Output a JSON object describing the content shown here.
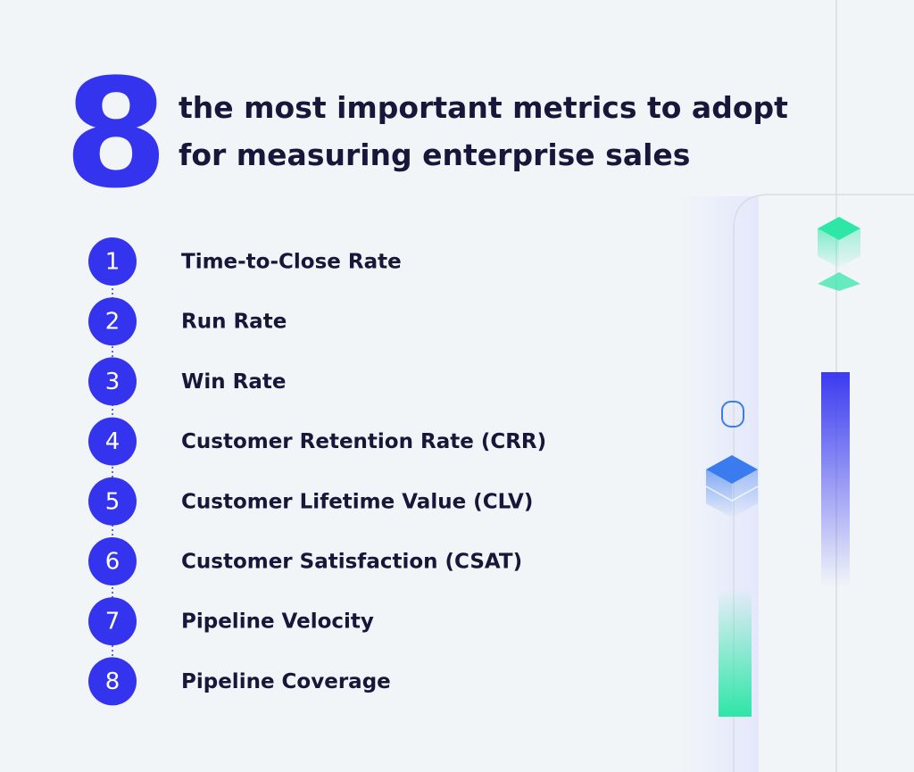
{
  "header": {
    "number": 8,
    "title_lines": [
      "the most important metrics to adopt",
      "for measuring enterprise sales"
    ]
  },
  "items": [
    {
      "number": 1,
      "label": "Time-to-Close Rate"
    },
    {
      "number": 2,
      "label": "Run Rate"
    },
    {
      "number": 3,
      "label": "Win Rate"
    },
    {
      "number": 4,
      "label": "Customer Retention Rate (CRR)"
    },
    {
      "number": 5,
      "label": "Customer Lifetime Value (CLV)"
    },
    {
      "number": 6,
      "label": "Customer Satisfaction (CSAT)"
    },
    {
      "number": 7,
      "label": "Pipeline Velocity"
    },
    {
      "number": 8,
      "label": "Pipeline Coverage"
    }
  ]
}
